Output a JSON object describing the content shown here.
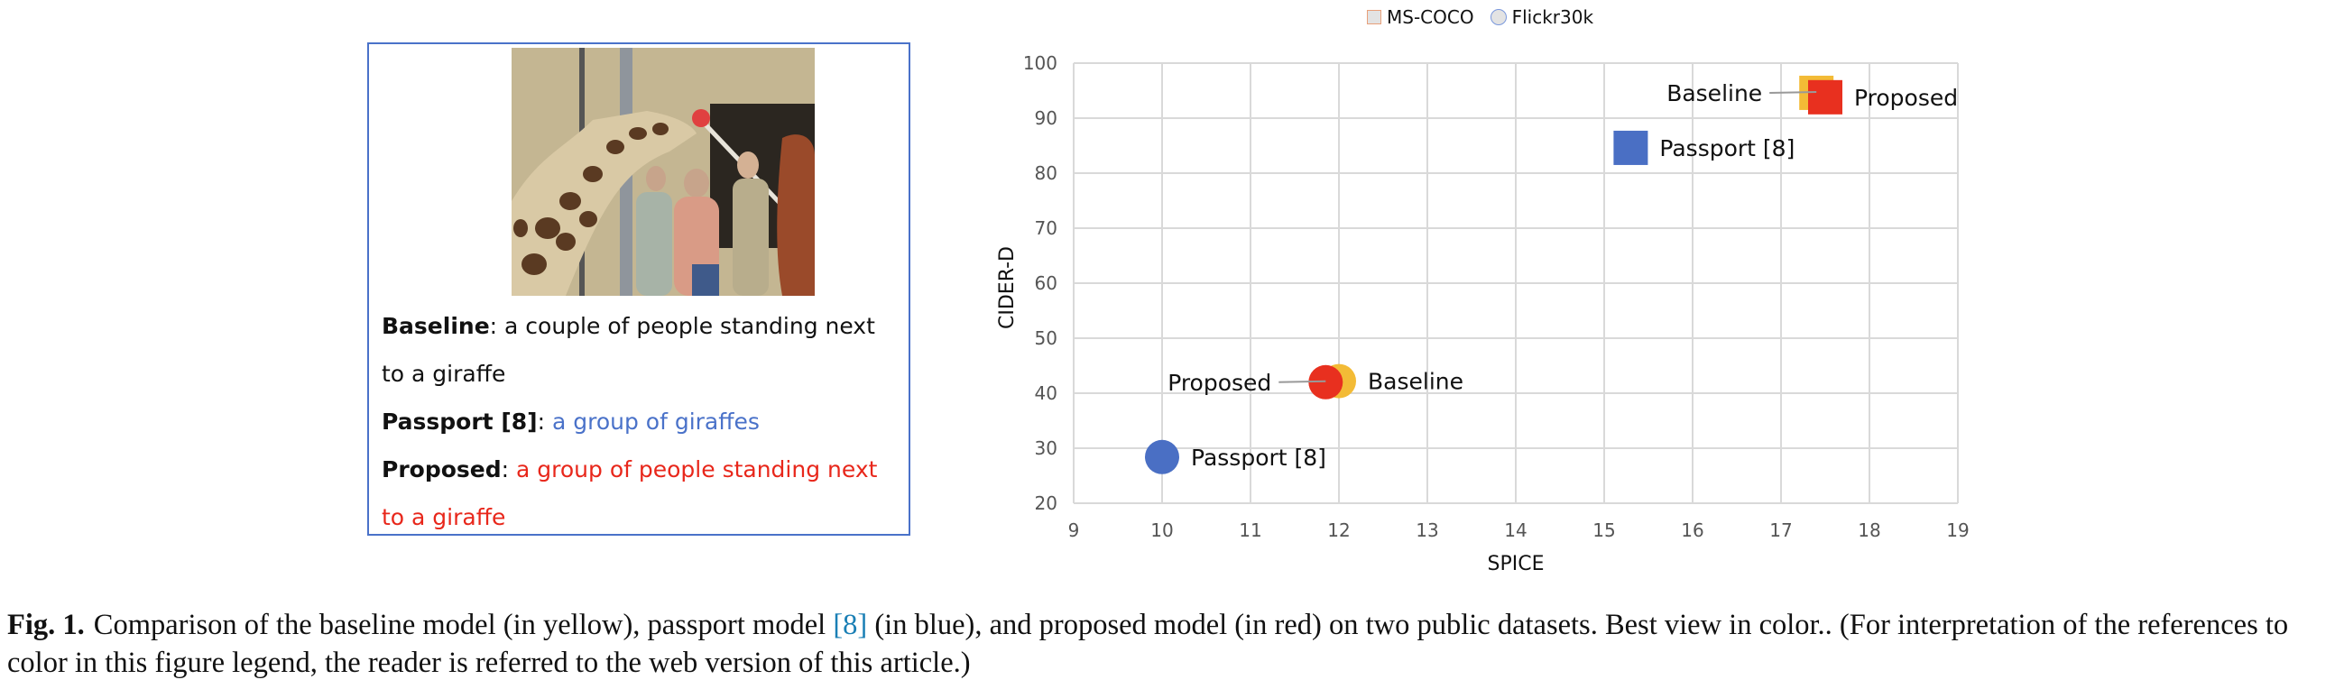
{
  "example": {
    "image_description": "giraffe-with-people-photo",
    "lines": [
      {
        "label": "Baseline",
        "sep": ": ",
        "text": "a couple of people standing next to a giraffe",
        "color": "#111111"
      },
      {
        "label": "Passport [8]",
        "sep": ": ",
        "text": "a group of giraffes",
        "color": "#4a72c9"
      },
      {
        "label": "Proposed",
        "sep": ": ",
        "text": "a group of people standing next to a giraffe",
        "color": "#e8271b"
      }
    ],
    "border_color": "#4a72c9"
  },
  "legend": {
    "items": [
      {
        "label": "MS-COCO",
        "marker": "square"
      },
      {
        "label": "Flickr30k",
        "marker": "circle"
      }
    ]
  },
  "chart_data": {
    "type": "scatter",
    "title": "",
    "xlabel": "SPICE",
    "ylabel": "CIDER-D",
    "xlim": [
      9,
      19
    ],
    "ylim": [
      20,
      100
    ],
    "xticks": [
      9,
      10,
      11,
      12,
      13,
      14,
      15,
      16,
      17,
      18,
      19
    ],
    "yticks": [
      20,
      30,
      40,
      50,
      60,
      70,
      80,
      90,
      100
    ],
    "grid": true,
    "legend_position": "top",
    "legend": [
      "MS-COCO",
      "Flickr30k"
    ],
    "series": [
      {
        "name": "Baseline",
        "dataset": "MS-COCO",
        "marker": "square",
        "color": "#f3bb36",
        "x": 17.4,
        "y": 94.6,
        "label": "Baseline",
        "label_side": "left"
      },
      {
        "name": "Proposed",
        "dataset": "MS-COCO",
        "marker": "square",
        "color": "#e8301f",
        "x": 17.5,
        "y": 93.8,
        "label": "Proposed",
        "label_side": "right"
      },
      {
        "name": "Passport [8]",
        "dataset": "MS-COCO",
        "marker": "square",
        "color": "#4a6fc4",
        "x": 15.3,
        "y": 84.6,
        "label": "Passport [8]",
        "label_side": "right"
      },
      {
        "name": "Baseline",
        "dataset": "Flickr30k",
        "marker": "circle",
        "color": "#f3bb36",
        "x": 12.0,
        "y": 42.2,
        "label": "Baseline",
        "label_side": "right"
      },
      {
        "name": "Proposed",
        "dataset": "Flickr30k",
        "marker": "circle",
        "color": "#e8301f",
        "x": 11.85,
        "y": 42.0,
        "label": "Proposed",
        "label_side": "left"
      },
      {
        "name": "Passport [8]",
        "dataset": "Flickr30k",
        "marker": "circle",
        "color": "#4a6fc4",
        "x": 10.0,
        "y": 28.4,
        "label": "Passport [8]",
        "label_side": "right"
      }
    ],
    "annotations": [
      "Baseline",
      "Proposed",
      "Passport [8]"
    ]
  },
  "caption": {
    "label": "Fig. 1.",
    "part1": "Comparison of the baseline model (in yellow), passport model ",
    "ref": "[8]",
    "part2": " (in blue), and proposed model (in red) on two public datasets. Best view in color.. (For interpretation of the references to color in this figure legend, the reader is referred to the web version of this article.)"
  }
}
